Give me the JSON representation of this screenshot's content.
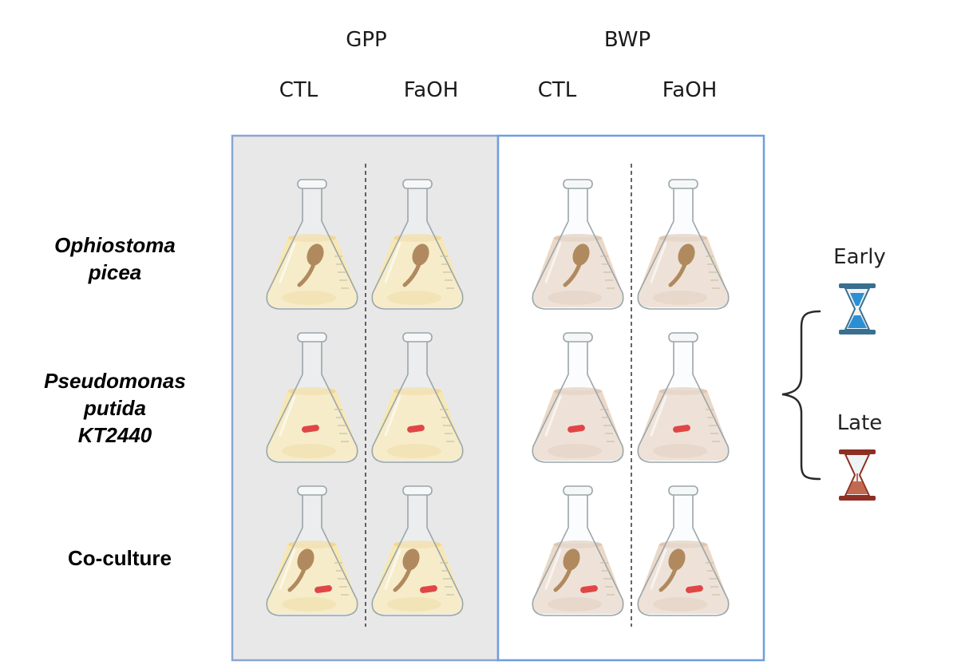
{
  "groups": [
    {
      "label": "GPP",
      "conditions": [
        "CTL",
        "FaOH"
      ],
      "panel_fill": "#e8e8e8",
      "panel_stroke": "#8aa6d2",
      "liquid": "#f8e7b0",
      "liquid_dark": "#f1d48a"
    },
    {
      "label": "BWP",
      "conditions": [
        "CTL",
        "FaOH"
      ],
      "panel_fill": "#ffffff",
      "panel_stroke": "#6f9ee0",
      "liquid": "#ecd8c6",
      "liquid_dark": "#dcc2ab"
    }
  ],
  "rows": [
    {
      "lines": [
        "Ophiostoma",
        "picea"
      ],
      "italic": true,
      "organisms": [
        "fungus"
      ]
    },
    {
      "lines": [
        "Pseudomonas",
        "putida",
        "KT2440"
      ],
      "italic": true,
      "organisms": [
        "bacterium"
      ]
    },
    {
      "lines": [
        "Co-culture"
      ],
      "italic": false,
      "organisms": [
        "fungus",
        "bacterium"
      ]
    }
  ],
  "timepoints": [
    {
      "label": "Early",
      "icon": "hourglass-icon",
      "color": "#3a6f8f",
      "sand": "#2b8fd6"
    },
    {
      "label": "Late",
      "icon": "hourglass-icon",
      "color": "#8e2f24",
      "sand": "#c26a50"
    }
  ],
  "colors": {
    "fungus": "#b08a5e",
    "bacterium": "#e04646",
    "glass": "#f4f7f8",
    "glass_stroke": "#9aa6aa"
  }
}
